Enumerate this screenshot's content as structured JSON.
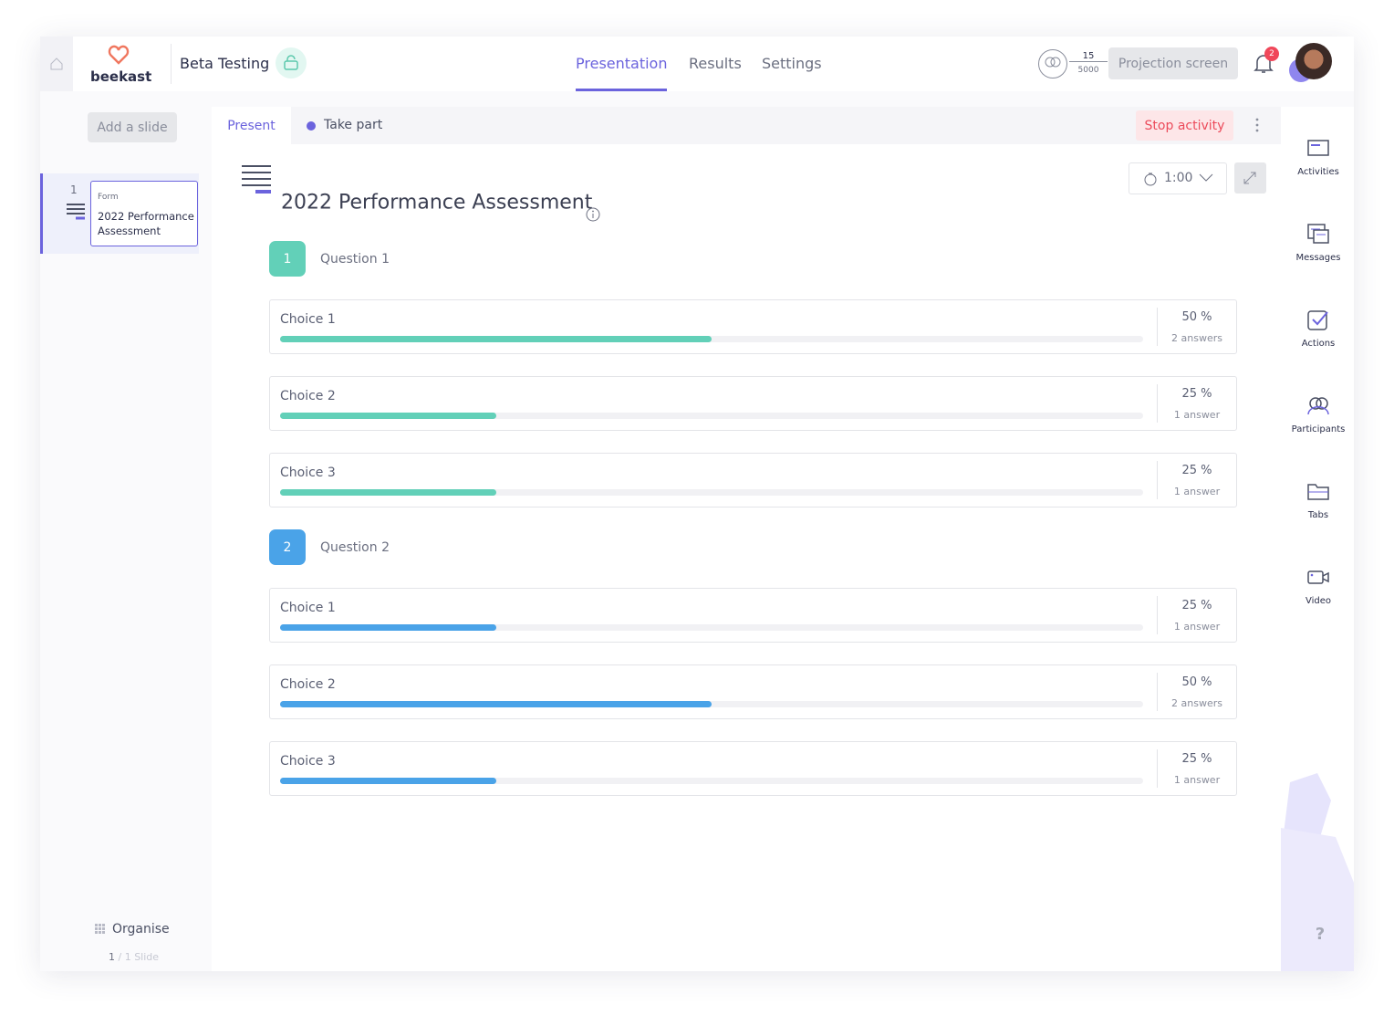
{
  "header": {
    "logo": "beekast",
    "project": "Beta Testing",
    "nav": [
      "Presentation",
      "Results",
      "Settings"
    ],
    "participants": {
      "count": "15",
      "limit": "5000"
    },
    "projection_button": "Projection screen",
    "notifications": "2"
  },
  "sidebar": {
    "add_slide": "Add a slide",
    "slides": [
      {
        "number": "1",
        "type": "Form",
        "title": "2022 Performance Assessment"
      }
    ],
    "organise": "Organise",
    "slide_count": {
      "current": "1",
      "total": "/ 1 Slide"
    }
  },
  "main": {
    "tabs": [
      "Present",
      "Take part"
    ],
    "stop_button": "Stop activity",
    "title": "2022 Performance Assessment",
    "timer": "1:00",
    "questions": [
      {
        "number": "1",
        "label": "Question 1",
        "color": "#62d0b8",
        "choices": [
          {
            "label": "Choice 1",
            "percent": 50,
            "percent_label": "50 %",
            "answers": "2 answers"
          },
          {
            "label": "Choice 2",
            "percent": 25,
            "percent_label": "25 %",
            "answers": "1 answer"
          },
          {
            "label": "Choice 3",
            "percent": 25,
            "percent_label": "25 %",
            "answers": "1 answer"
          }
        ]
      },
      {
        "number": "2",
        "label": "Question 2",
        "color": "#4aa3e8",
        "choices": [
          {
            "label": "Choice 1",
            "percent": 25,
            "percent_label": "25 %",
            "answers": "1 answer"
          },
          {
            "label": "Choice 2",
            "percent": 50,
            "percent_label": "50 %",
            "answers": "2 answers"
          },
          {
            "label": "Choice 3",
            "percent": 25,
            "percent_label": "25 %",
            "answers": "1 answer"
          }
        ]
      }
    ]
  },
  "tools": [
    "Activities",
    "Messages",
    "Actions",
    "Participants",
    "Tabs",
    "Video"
  ],
  "help": "?"
}
